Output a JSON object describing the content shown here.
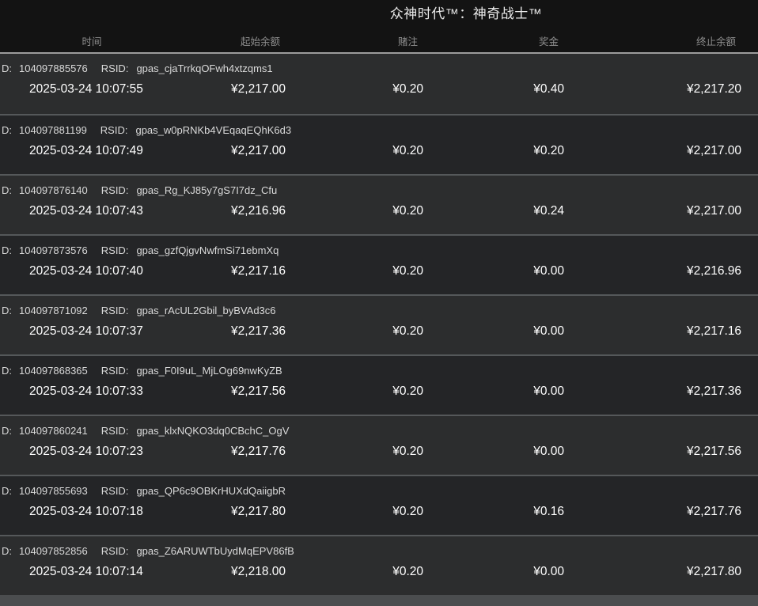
{
  "title": "众神时代™：神奇战士™",
  "labels": {
    "id": "D:",
    "rsid": "RSID:"
  },
  "columns": {
    "time": "时间",
    "start_balance": "起始余额",
    "bet": "赌注",
    "win": "奖金",
    "end_balance": "终止余额"
  },
  "colors": {
    "header_bg": "#131313",
    "row_light": "#2c2d2e",
    "row_dark": "#242527",
    "header_separator": "#9c9c9c",
    "row_separator": "#55585a",
    "bottom_strip": "#4b4d4f",
    "text_primary": "#ffffff",
    "text_meta": "#dadada",
    "text_header": "#8d8d8d"
  },
  "rows": [
    {
      "id": "104097885576",
      "rsid": "gpas_cjaTrrkqOFwh4xtzqms1",
      "time": "2025-03-24 10:07:55",
      "start": "¥2,217.00",
      "bet": "¥0.20",
      "win": "¥0.40",
      "end": "¥2,217.20"
    },
    {
      "id": "104097881199",
      "rsid": "gpas_w0pRNKb4VEqaqEQhK6d3",
      "time": "2025-03-24 10:07:49",
      "start": "¥2,217.00",
      "bet": "¥0.20",
      "win": "¥0.20",
      "end": "¥2,217.00"
    },
    {
      "id": "104097876140",
      "rsid": "gpas_Rg_KJ85y7gS7I7dz_Cfu",
      "time": "2025-03-24 10:07:43",
      "start": "¥2,216.96",
      "bet": "¥0.20",
      "win": "¥0.24",
      "end": "¥2,217.00"
    },
    {
      "id": "104097873576",
      "rsid": "gpas_gzfQjgvNwfmSi71ebmXq",
      "time": "2025-03-24 10:07:40",
      "start": "¥2,217.16",
      "bet": "¥0.20",
      "win": "¥0.00",
      "end": "¥2,216.96"
    },
    {
      "id": "104097871092",
      "rsid": "gpas_rAcUL2Gbil_byBVAd3c6",
      "time": "2025-03-24 10:07:37",
      "start": "¥2,217.36",
      "bet": "¥0.20",
      "win": "¥0.00",
      "end": "¥2,217.16"
    },
    {
      "id": "104097868365",
      "rsid": "gpas_F0I9uL_MjLOg69nwKyZB",
      "time": "2025-03-24 10:07:33",
      "start": "¥2,217.56",
      "bet": "¥0.20",
      "win": "¥0.00",
      "end": "¥2,217.36"
    },
    {
      "id": "104097860241",
      "rsid": "gpas_klxNQKO3dq0CBchC_OgV",
      "time": "2025-03-24 10:07:23",
      "start": "¥2,217.76",
      "bet": "¥0.20",
      "win": "¥0.00",
      "end": "¥2,217.56"
    },
    {
      "id": "104097855693",
      "rsid": "gpas_QP6c9OBKrHUXdQaiigbR",
      "time": "2025-03-24 10:07:18",
      "start": "¥2,217.80",
      "bet": "¥0.20",
      "win": "¥0.16",
      "end": "¥2,217.76"
    },
    {
      "id": "104097852856",
      "rsid": "gpas_Z6ARUWTbUydMqEPV86fB",
      "time": "2025-03-24 10:07:14",
      "start": "¥2,218.00",
      "bet": "¥0.20",
      "win": "¥0.00",
      "end": "¥2,217.80"
    }
  ]
}
